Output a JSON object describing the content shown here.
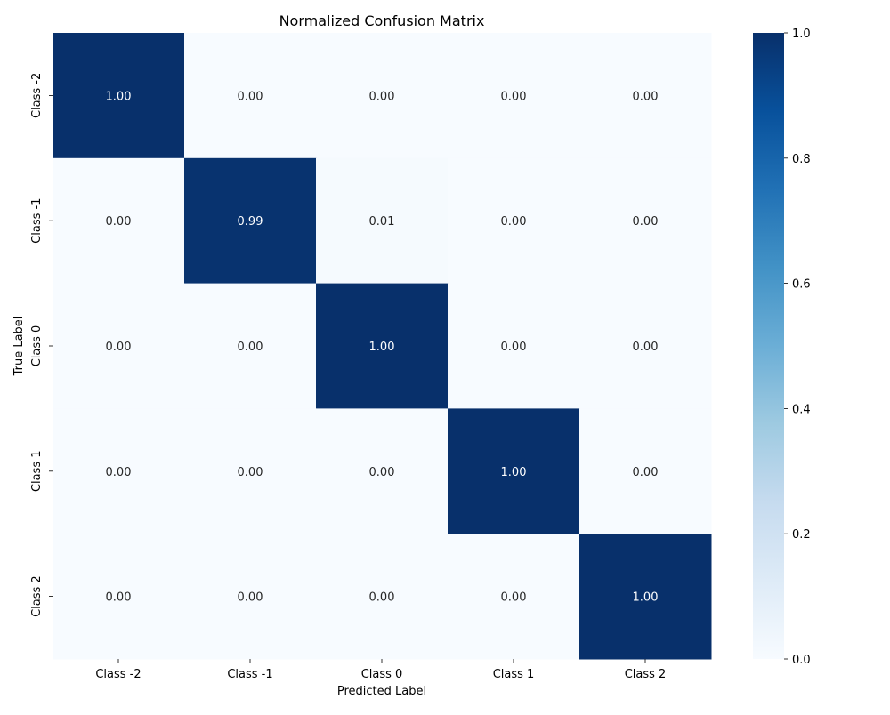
{
  "chart_data": {
    "type": "heatmap",
    "title": "Normalized Confusion Matrix",
    "xlabel": "Predicted Label",
    "ylabel": "True Label",
    "x_categories": [
      "Class -2",
      "Class -1",
      "Class 0",
      "Class 1",
      "Class 2"
    ],
    "y_categories": [
      "Class -2",
      "Class -1",
      "Class 0",
      "Class 1",
      "Class 2"
    ],
    "values": [
      [
        1.0,
        0.0,
        0.0,
        0.0,
        0.0
      ],
      [
        0.0,
        0.99,
        0.01,
        0.0,
        0.0
      ],
      [
        0.0,
        0.0,
        1.0,
        0.0,
        0.0
      ],
      [
        0.0,
        0.0,
        0.0,
        1.0,
        0.0
      ],
      [
        0.0,
        0.0,
        0.0,
        0.0,
        1.0
      ]
    ],
    "annotation_format": "0.00",
    "colormap": "Blues",
    "colormap_stops": [
      "#f7fbff",
      "#deebf7",
      "#c6dbef",
      "#9ecae1",
      "#6baed6",
      "#4292c6",
      "#2171b5",
      "#08519c",
      "#08306b"
    ],
    "colorbar": {
      "range": [
        0.0,
        1.0
      ],
      "ticks": [
        "0.0",
        "0.2",
        "0.4",
        "0.6",
        "0.8",
        "1.0"
      ]
    }
  }
}
